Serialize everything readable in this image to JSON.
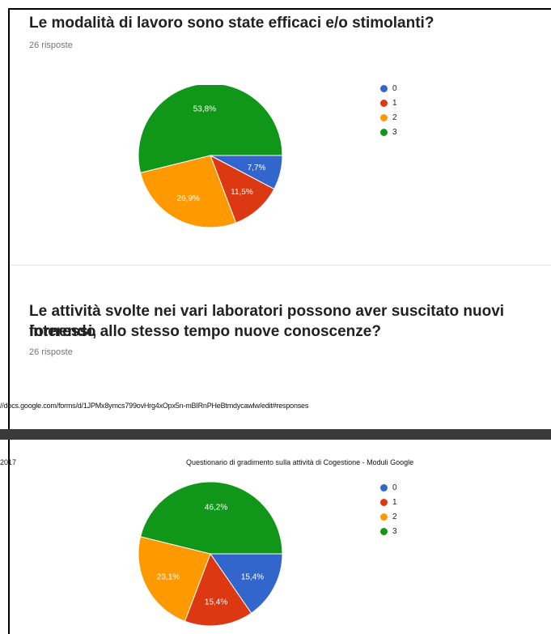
{
  "colors": {
    "c0": "#3366cc",
    "c1": "#dc3912",
    "c2": "#ff9900",
    "c3": "#109618"
  },
  "question1": {
    "title": "Le modalità di lavoro sono state efficaci e/o stimolanti?",
    "count": "26 risposte"
  },
  "question2": {
    "title_line1": "Le attività svolte nei vari laboratori possono aver suscitato nuovi interessi,",
    "title_line2": "fornendo allo stesso tempo nuove conoscenze?",
    "count": "26 risposte"
  },
  "print_footer": {
    "url": "//docs.google.com/forms/d/1JPMx8ymcs799ovHrg4xOpx5n-mBIRnPHeBtmdycawlw/edit#responses"
  },
  "print_header": {
    "date": "2017",
    "title": "Questionario di gradimento sulla attività di Cogestione - Moduli Google"
  },
  "chart_data": [
    {
      "type": "pie",
      "title": "",
      "categories": [
        "0",
        "1",
        "2",
        "3"
      ],
      "values": [
        7.7,
        11.5,
        26.9,
        53.8
      ],
      "labels": [
        "7,7%",
        "11,5%",
        "26,9%",
        "53,8%"
      ],
      "legend": "right"
    },
    {
      "type": "pie",
      "title": "",
      "categories": [
        "0",
        "1",
        "2",
        "3"
      ],
      "values": [
        15.4,
        15.4,
        23.1,
        46.2
      ],
      "labels": [
        "15,4%",
        "15,4%",
        "23,1%",
        "46,2%"
      ],
      "legend": "right"
    }
  ]
}
